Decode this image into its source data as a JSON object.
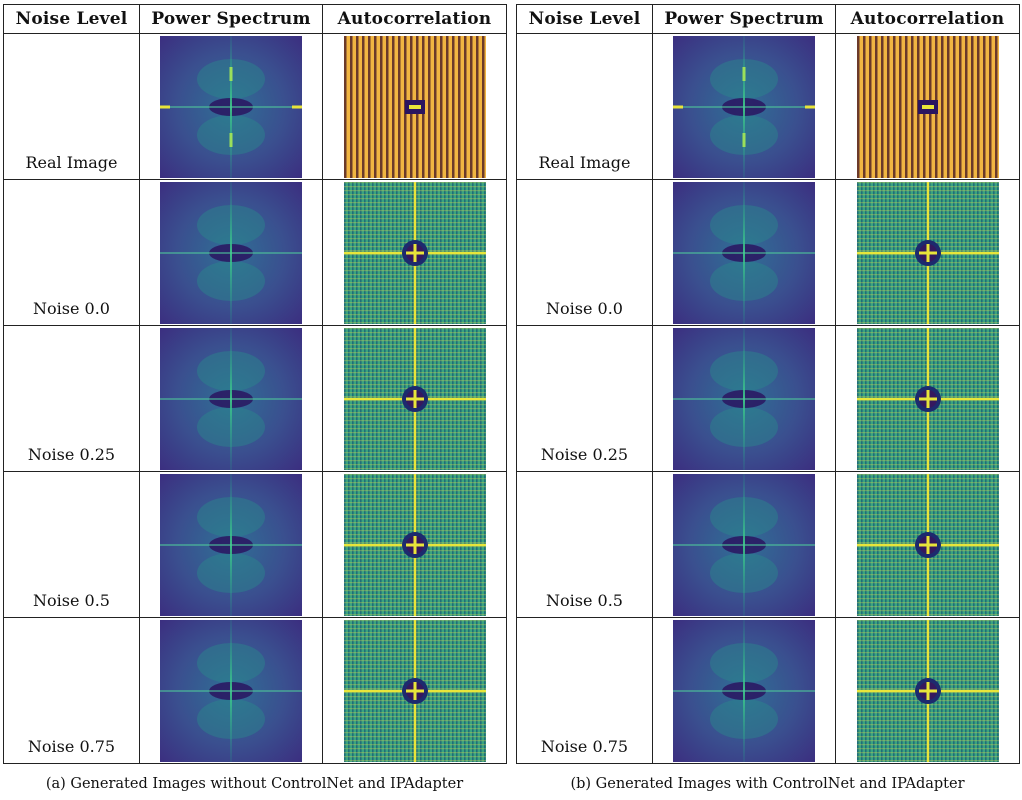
{
  "headers": [
    "Noise Level",
    "Power Spectrum",
    "Autocorrelation"
  ],
  "panels": [
    {
      "id": "a",
      "caption": "(a) Generated Images without ControlNet and IPAdapter",
      "rows": [
        {
          "label": "Real Image",
          "spectrum_icon": "power-spectrum-real",
          "autocorr_icon": "autocorrelation-real"
        },
        {
          "label": "Noise 0.0",
          "spectrum_icon": "power-spectrum-generated",
          "autocorr_icon": "autocorrelation-generated"
        },
        {
          "label": "Noise 0.25",
          "spectrum_icon": "power-spectrum-generated",
          "autocorr_icon": "autocorrelation-generated"
        },
        {
          "label": "Noise 0.5",
          "spectrum_icon": "power-spectrum-generated",
          "autocorr_icon": "autocorrelation-generated"
        },
        {
          "label": "Noise 0.75",
          "spectrum_icon": "power-spectrum-generated",
          "autocorr_icon": "autocorrelation-generated"
        }
      ]
    },
    {
      "id": "b",
      "caption": "(b) Generated Images with ControlNet and IPAdapter",
      "rows": [
        {
          "label": "Real Image",
          "spectrum_icon": "power-spectrum-real",
          "autocorr_icon": "autocorrelation-real"
        },
        {
          "label": "Noise 0.0",
          "spectrum_icon": "power-spectrum-generated",
          "autocorr_icon": "autocorrelation-generated"
        },
        {
          "label": "Noise 0.25",
          "spectrum_icon": "power-spectrum-generated",
          "autocorr_icon": "autocorrelation-generated"
        },
        {
          "label": "Noise 0.5",
          "spectrum_icon": "power-spectrum-generated",
          "autocorr_icon": "autocorrelation-generated"
        },
        {
          "label": "Noise 0.75",
          "spectrum_icon": "power-spectrum-generated",
          "autocorr_icon": "autocorrelation-generated"
        }
      ]
    }
  ],
  "colormap": {
    "dark": "#3b2a7a",
    "mid": "#2a8a8c",
    "bright": "#e8e53a",
    "hot": "#f5c542"
  }
}
